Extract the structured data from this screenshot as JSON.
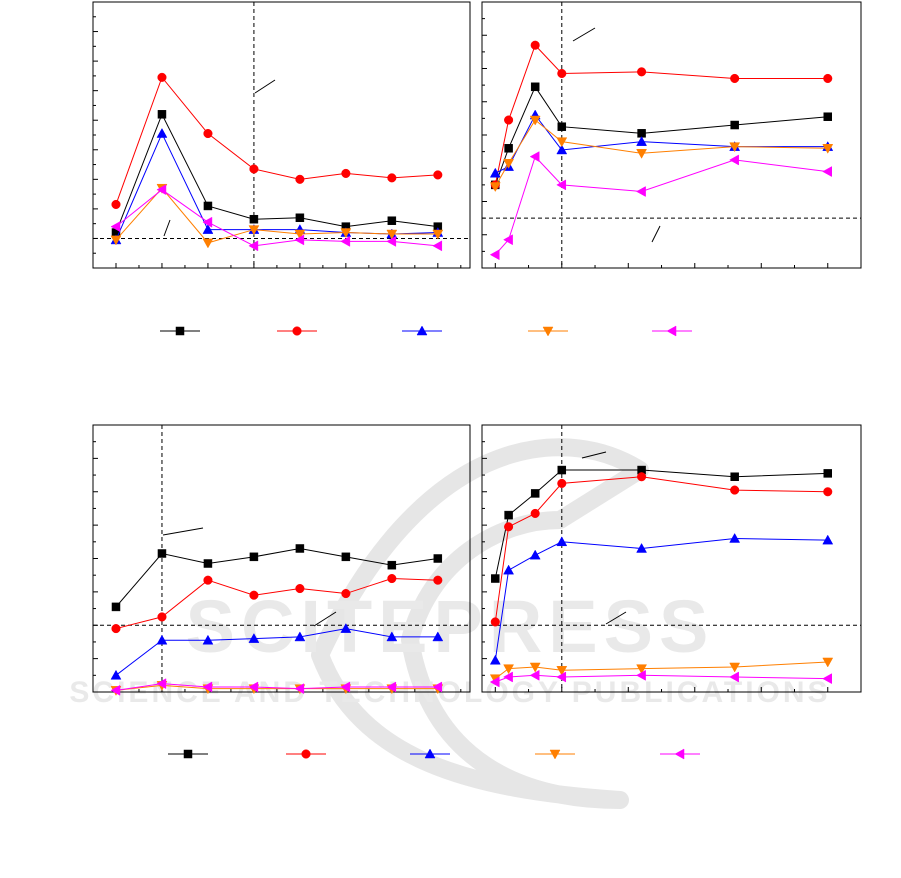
{
  "chart_data": [
    {
      "type": "line",
      "series": [
        {
          "values": [
            0.4,
            8.4,
            2.2,
            1.3,
            1.4,
            0.8,
            1.2,
            0.8
          ],
          "color": "#000000",
          "marker": "square"
        },
        {
          "values": [
            2.3,
            10.9,
            7.1,
            4.7,
            4.0,
            4.4,
            4.1,
            4.3
          ],
          "color": "#ff0000",
          "marker": "circle"
        },
        {
          "values": [
            -0.1,
            7.1,
            0.6,
            0.6,
            0.6,
            0.4,
            0.3,
            0.4
          ],
          "color": "#0000ff",
          "marker": "triangle-up"
        },
        {
          "values": [
            -0.1,
            3.4,
            -0.3,
            0.6,
            0.3,
            0.4,
            0.3,
            0.3
          ],
          "color": "#ff7f00",
          "marker": "triangle-down"
        },
        {
          "values": [
            0.8,
            3.3,
            1.1,
            -0.5,
            -0.1,
            -0.2,
            -0.2,
            -0.5
          ],
          "color": "#ff00ff",
          "marker": "triangle-left"
        }
      ],
      "x": [
        0,
        1,
        2,
        3,
        4,
        5,
        6,
        7
      ],
      "xlim": [
        -0.5,
        7.7
      ],
      "ylim": [
        -2,
        16
      ],
      "guide_x": 3,
      "guide_y": 0
    },
    {
      "type": "line",
      "series": [
        {
          "values": [
            2.0,
            4.2,
            7.9,
            5.5,
            5.1,
            5.6,
            6.1
          ],
          "color": "#000000",
          "marker": "square"
        },
        {
          "values": [
            2.0,
            5.9,
            10.4,
            8.7,
            8.8,
            8.4,
            8.4
          ],
          "color": "#ff0000",
          "marker": "circle"
        },
        {
          "values": [
            2.7,
            3.1,
            6.2,
            4.1,
            4.6,
            4.3,
            4.3
          ],
          "color": "#0000ff",
          "marker": "triangle-up"
        },
        {
          "values": [
            1.9,
            3.3,
            5.9,
            4.6,
            3.9,
            4.3,
            4.2
          ],
          "color": "#ff7f00",
          "marker": "triangle-down"
        },
        {
          "values": [
            -2.2,
            -1.3,
            3.7,
            2.0,
            1.6,
            3.5,
            2.8
          ],
          "color": "#ff00ff",
          "marker": "triangle-left"
        }
      ],
      "x": [
        0,
        1,
        3,
        5,
        11,
        18,
        25
      ],
      "xlim": [
        -1,
        27.5
      ],
      "ylim": [
        -3,
        13
      ],
      "guide_x": 5,
      "guide_y": 0
    },
    {
      "type": "line",
      "series": [
        {
          "values": [
            1.1,
            4.3,
            3.7,
            4.1,
            4.6,
            4.1,
            3.6,
            4.0
          ],
          "color": "#000000",
          "marker": "square"
        },
        {
          "values": [
            -0.2,
            0.5,
            2.7,
            1.8,
            2.2,
            1.9,
            2.8,
            2.7
          ],
          "color": "#ff0000",
          "marker": "circle"
        },
        {
          "values": [
            -3.0,
            -0.9,
            -0.9,
            -0.8,
            -0.7,
            -0.2,
            -0.7,
            -0.7
          ],
          "color": "#0000ff",
          "marker": "triangle-up"
        },
        {
          "values": [
            -3.9,
            -3.6,
            -3.8,
            -3.8,
            -3.8,
            -3.8,
            -3.8,
            -3.8
          ],
          "color": "#ff7f00",
          "marker": "triangle-down"
        },
        {
          "values": [
            -3.9,
            -3.5,
            -3.7,
            -3.7,
            -3.8,
            -3.7,
            -3.7,
            -3.7
          ],
          "color": "#ff00ff",
          "marker": "triangle-left"
        }
      ],
      "x": [
        0,
        1,
        2,
        3,
        4,
        5,
        6,
        7
      ],
      "xlim": [
        -0.5,
        7.7
      ],
      "ylim": [
        -4,
        12
      ],
      "guide_x": 1,
      "guide_y": 0
    },
    {
      "type": "line",
      "series": [
        {
          "values": [
            2.8,
            6.6,
            7.9,
            9.3,
            9.3,
            8.9,
            9.1
          ],
          "color": "#000000",
          "marker": "square"
        },
        {
          "values": [
            0.2,
            5.9,
            6.7,
            8.5,
            8.9,
            8.1,
            8.0
          ],
          "color": "#ff0000",
          "marker": "circle"
        },
        {
          "values": [
            -2.1,
            3.3,
            4.2,
            5.0,
            4.6,
            5.2,
            5.1
          ],
          "color": "#0000ff",
          "marker": "triangle-up"
        },
        {
          "values": [
            -3.2,
            -2.6,
            -2.5,
            -2.7,
            -2.6,
            -2.5,
            -2.2
          ],
          "color": "#ff7f00",
          "marker": "triangle-down"
        },
        {
          "values": [
            -3.4,
            -3.1,
            -3.0,
            -3.1,
            -3.0,
            -3.1,
            -3.2
          ],
          "color": "#ff00ff",
          "marker": "triangle-left"
        }
      ],
      "x": [
        0,
        1,
        3,
        5,
        11,
        18,
        25
      ],
      "xlim": [
        -1,
        27.5
      ],
      "ylim": [
        -4,
        12
      ],
      "guide_x": 5,
      "guide_y": 0
    }
  ],
  "legend": {
    "entries": [
      {
        "color": "#000000",
        "marker": "square"
      },
      {
        "color": "#ff0000",
        "marker": "circle"
      },
      {
        "color": "#0000ff",
        "marker": "triangle-up"
      },
      {
        "color": "#ff7f00",
        "marker": "triangle-down"
      },
      {
        "color": "#ff00ff",
        "marker": "triangle-left"
      }
    ]
  },
  "watermark": {
    "line1": "SCITEPRESS",
    "line2": "SCIENCE AND TECHNOLOGY PUBLICATIONS"
  }
}
